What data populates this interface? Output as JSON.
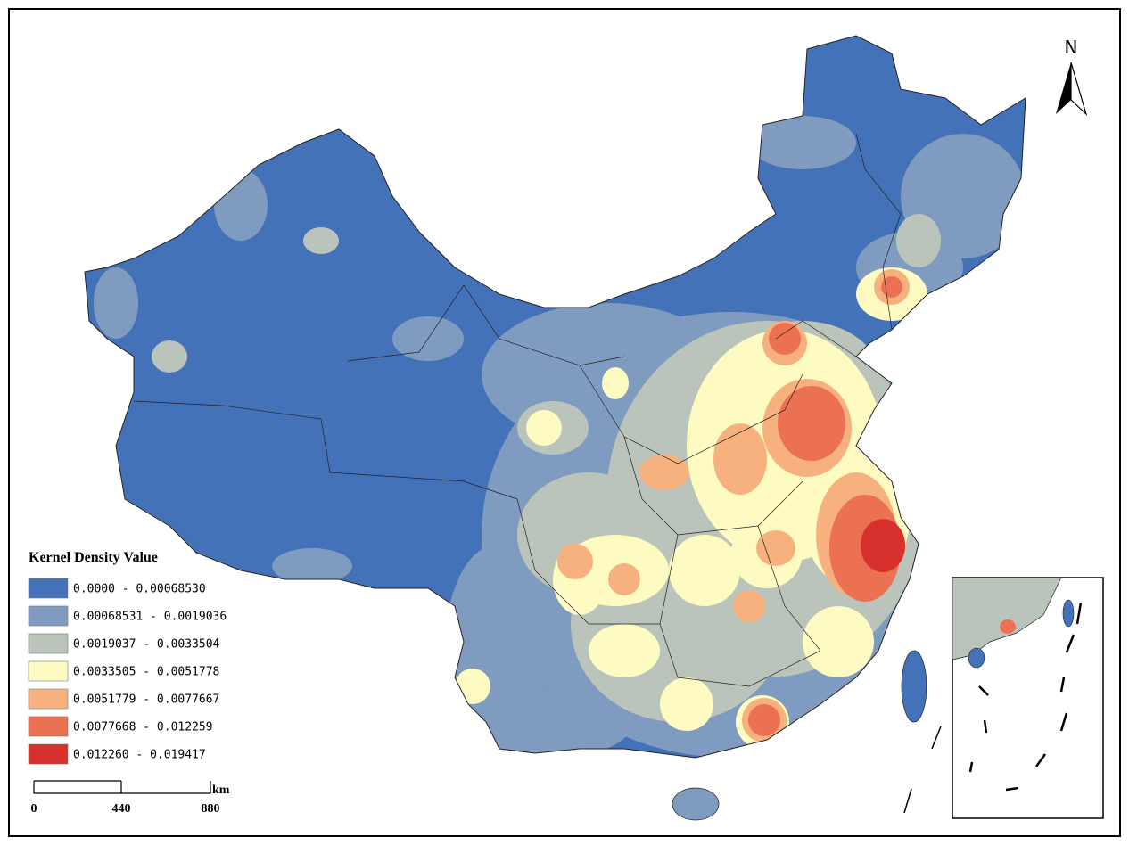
{
  "legend": {
    "title": "Kernel Density Value",
    "classes": [
      {
        "label": "0.0000 - 0.00068530",
        "color": "#4472b8"
      },
      {
        "label": "0.00068531 - 0.0019036",
        "color": "#7f9bc0"
      },
      {
        "label": "0.0019037 - 0.0033504",
        "color": "#bac4ba"
      },
      {
        "label": "0.0033505 - 0.0051778",
        "color": "#fdfbc1"
      },
      {
        "label": "0.0051779 - 0.0077667",
        "color": "#f6b17f"
      },
      {
        "label": "0.0077668 - 0.012259",
        "color": "#ec7153"
      },
      {
        "label": "0.012260 - 0.019417",
        "color": "#d8302c"
      }
    ]
  },
  "scale_bar": {
    "ticks": [
      "0",
      "440",
      "880"
    ],
    "unit": "km"
  },
  "north_arrow": {
    "label": "N"
  }
}
